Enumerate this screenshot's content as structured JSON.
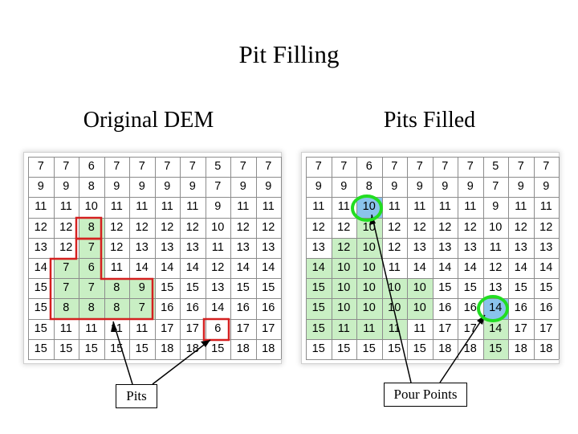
{
  "title": "Pit Filling",
  "original": {
    "heading": "Original DEM",
    "rows": [
      [
        7,
        7,
        6,
        7,
        7,
        7,
        7,
        5,
        7,
        7
      ],
      [
        9,
        9,
        8,
        9,
        9,
        9,
        9,
        7,
        9,
        9
      ],
      [
        11,
        11,
        10,
        11,
        11,
        11,
        11,
        9,
        11,
        11
      ],
      [
        12,
        12,
        8,
        12,
        12,
        12,
        12,
        10,
        12,
        12
      ],
      [
        13,
        12,
        7,
        12,
        13,
        13,
        13,
        11,
        13,
        13
      ],
      [
        14,
        7,
        6,
        11,
        14,
        14,
        14,
        12,
        14,
        14
      ],
      [
        15,
        7,
        7,
        8,
        9,
        15,
        15,
        13,
        15,
        15
      ],
      [
        15,
        8,
        8,
        8,
        7,
        16,
        16,
        14,
        16,
        16
      ],
      [
        15,
        11,
        11,
        11,
        11,
        17,
        17,
        6,
        17,
        17
      ],
      [
        15,
        15,
        15,
        15,
        15,
        18,
        18,
        15,
        18,
        18
      ]
    ],
    "highlight_color": "#c9efc4",
    "pit_outline_color": "#d42020"
  },
  "filled": {
    "heading": "Pits Filled",
    "rows": [
      [
        7,
        7,
        6,
        7,
        7,
        7,
        7,
        5,
        7,
        7
      ],
      [
        9,
        9,
        8,
        9,
        9,
        9,
        9,
        7,
        9,
        9
      ],
      [
        11,
        11,
        10,
        11,
        11,
        11,
        11,
        9,
        11,
        11
      ],
      [
        12,
        12,
        10,
        12,
        12,
        12,
        12,
        10,
        12,
        12
      ],
      [
        13,
        12,
        10,
        12,
        13,
        13,
        13,
        11,
        13,
        13
      ],
      [
        14,
        10,
        10,
        11,
        14,
        14,
        14,
        12,
        14,
        14
      ],
      [
        15,
        10,
        10,
        10,
        10,
        15,
        15,
        13,
        15,
        15
      ],
      [
        15,
        10,
        10,
        10,
        10,
        16,
        16,
        14,
        16,
        16
      ],
      [
        15,
        11,
        11,
        11,
        11,
        17,
        17,
        14,
        17,
        17
      ],
      [
        15,
        15,
        15,
        15,
        15,
        18,
        18,
        15,
        18,
        18
      ]
    ],
    "highlight_color": "#c9efc4",
    "pour_point_color": "#8ac3ec",
    "pour_circle_color": "#22dd22"
  },
  "labels": {
    "pits": "Pits",
    "pour_points": "Pour Points"
  }
}
